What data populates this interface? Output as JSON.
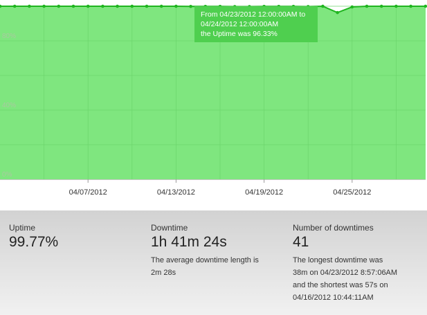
{
  "colors": {
    "area_fill": "#7fe67f",
    "line": "#1fb51f",
    "grid": "#6cd46c",
    "tooltip_bg": "#4fcf4f"
  },
  "chart_data": {
    "type": "area",
    "y_ticks": [
      "80%",
      "40%",
      "0%"
    ],
    "x_ticks": [
      "04/07/2012",
      "04/13/2012",
      "04/19/2012",
      "04/25/2012"
    ],
    "ylim": [
      0,
      100
    ],
    "grid": true,
    "series": [
      {
        "x": [
          "04/01",
          "04/02",
          "04/03",
          "04/04",
          "04/05",
          "04/06",
          "04/07",
          "04/08",
          "04/09",
          "04/10",
          "04/11",
          "04/12",
          "04/13",
          "04/14",
          "04/15",
          "04/16",
          "04/17",
          "04/18",
          "04/19",
          "04/20",
          "04/21",
          "04/22",
          "04/23",
          "04/24",
          "04/25",
          "04/26",
          "04/27",
          "04/28",
          "04/29",
          "04/30"
        ],
        "values": [
          100,
          100,
          100,
          100,
          100,
          100,
          100,
          100,
          100,
          100,
          100,
          100,
          100,
          99.9,
          99.9,
          99.9,
          99.8,
          99.8,
          99.9,
          99.9,
          99.9,
          99.8,
          100,
          96.33,
          99.6,
          100,
          100,
          100,
          100,
          100
        ]
      }
    ],
    "tooltip": {
      "line1": "From 04/23/2012 12:00:00AM to",
      "line2": "04/24/2012 12:00:00AM",
      "line3": "the Uptime was 96.33%"
    }
  },
  "stats": {
    "uptime": {
      "label": "Uptime",
      "value": "99.77%"
    },
    "downtime": {
      "label": "Downtime",
      "value": "1h 41m 24s",
      "desc_line1": "The average downtime length is",
      "desc_line2": "2m 28s"
    },
    "downtimes": {
      "label": "Number of downtimes",
      "value": "41",
      "desc_line1": "The longest downtime was",
      "desc_line2": "38m on 04/23/2012 8:57:06AM",
      "desc_line3": "and the shortest was 57s on",
      "desc_line4": "04/16/2012 10:44:11AM"
    }
  }
}
